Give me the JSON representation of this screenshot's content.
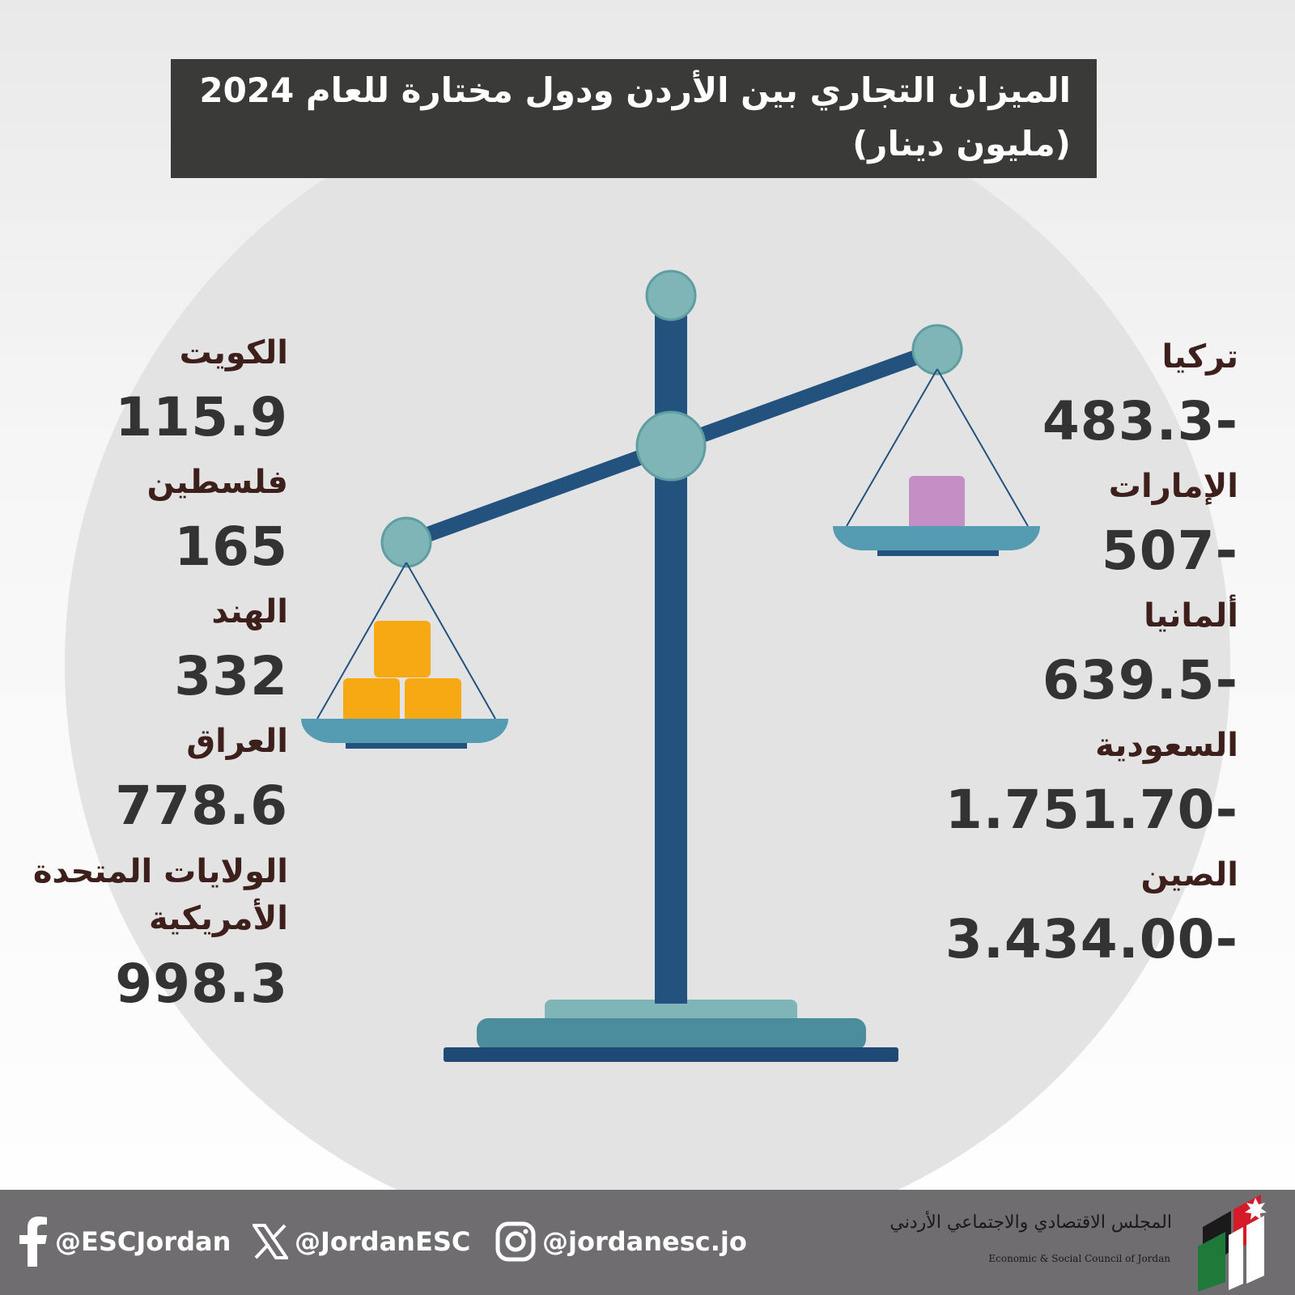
{
  "title": {
    "line1": "الميزان التجاري بين الأردن ودول مختارة للعام 2024",
    "line2": "(مليون دينار)"
  },
  "chart_data": {
    "type": "table",
    "title": "الميزان التجاري بين الأردن ودول مختارة للعام 2024",
    "subtitle": "(مليون دينار)",
    "surplus": [
      {
        "country": "الكويت",
        "value": "115.9"
      },
      {
        "country": "فلسطين",
        "value": "165"
      },
      {
        "country": "الهند",
        "value": "332"
      },
      {
        "country": "العراق",
        "value": "778.6"
      },
      {
        "country": "الولايات المتحدة الأمريكية",
        "value": "998.3"
      }
    ],
    "deficit": [
      {
        "country": "تركيا",
        "value": "483.3-"
      },
      {
        "country": "الإمارات",
        "value": "507-"
      },
      {
        "country": "ألمانيا",
        "value": "639.5-"
      },
      {
        "country": "السعودية",
        "value": "1.751.70-"
      },
      {
        "country": "الصين",
        "value": "3.434.00-"
      }
    ]
  },
  "colors": {
    "title_bg": "#3a3a39",
    "country_text": "#3d1f1b",
    "value_text": "#333333",
    "scale_pole": "#23527e",
    "scale_knob": "#7fb5b6",
    "pan": "#559cb2",
    "gold_blocks": "#f6a913",
    "purple_block": "#c38fc4",
    "footer_bg": "#6f6d70"
  },
  "footer": {
    "facebook": "@ESCJordan",
    "x": "@JordanESC",
    "instagram": "@jordanesc.jo",
    "logo_ar": "المجلس الاقتصادي والاجتماعي الأردني",
    "logo_en": "Economic & Social Council of Jordan"
  }
}
